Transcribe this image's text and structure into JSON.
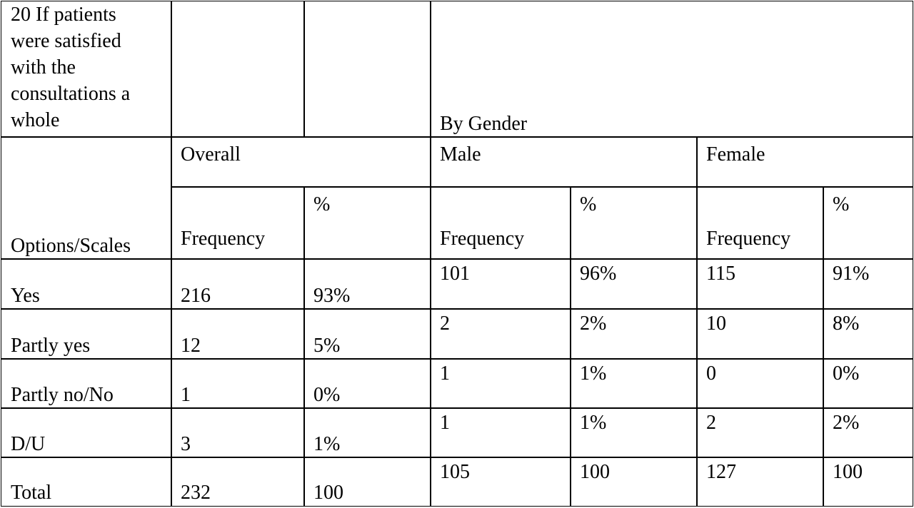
{
  "table": {
    "title": "20 If patients were satisfied with the consultations a whole",
    "group_header": "By Gender",
    "options_header": "Options/Scales",
    "column_groups": [
      "Overall",
      "Male",
      "Female"
    ],
    "subheaders": [
      "Frequency",
      "%",
      "Frequency",
      "%",
      "Frequency",
      "%"
    ],
    "rows": [
      [
        "Yes",
        "216",
        "93%",
        "101",
        "96%",
        "115",
        "91%"
      ],
      [
        "Partly yes",
        "12",
        "5%",
        "2",
        "2%",
        "10",
        "8%"
      ],
      [
        "Partly no/No",
        "1",
        "0%",
        "1",
        "1%",
        "0",
        "0%"
      ],
      [
        "D/U",
        "3",
        "1%",
        "1",
        "1%",
        "2",
        "2%"
      ],
      [
        "Total",
        "232",
        "100",
        "105",
        "100",
        "127",
        "100"
      ]
    ]
  }
}
